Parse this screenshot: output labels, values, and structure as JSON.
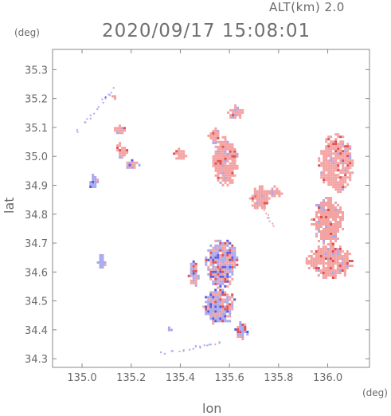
{
  "header": {
    "altitude_label": "ALT(km) 2.0",
    "datetime": "2020/09/17 15:08:01"
  },
  "axes": {
    "x_label": "lon",
    "y_label": "lat",
    "x_unit": "(deg)",
    "y_unit": "(deg)",
    "x_range": [
      134.88,
      136.17
    ],
    "y_range": [
      34.27,
      35.37
    ],
    "x_ticks": [
      "135.0",
      "135.2",
      "135.4",
      "135.6",
      "135.8",
      "136.0"
    ],
    "x_tick_values": [
      135.0,
      135.2,
      135.4,
      135.6,
      135.8,
      136.0
    ],
    "y_ticks": [
      "34.3",
      "34.4",
      "34.5",
      "34.6",
      "34.7",
      "34.8",
      "34.9",
      "35.0",
      "35.1",
      "35.2",
      "35.3"
    ],
    "y_tick_values": [
      34.3,
      34.4,
      34.5,
      34.6,
      34.7,
      34.8,
      34.9,
      35.0,
      35.1,
      35.2,
      35.3
    ]
  },
  "colors": {
    "frame": "#888888",
    "receding": "#f4a3a3",
    "approaching": "#a9a9ee",
    "strong_receding": "#e05050",
    "strong_approaching": "#5a5ae0"
  },
  "echo_regions": [
    {
      "lon": [
        135.96,
        136.1
      ],
      "lat": [
        34.88,
        35.08
      ],
      "tone": "r"
    },
    {
      "lon": [
        135.93,
        136.06
      ],
      "lat": [
        34.7,
        34.86
      ],
      "tone": "r"
    },
    {
      "lon": [
        135.91,
        136.1
      ],
      "lat": [
        34.58,
        34.7
      ],
      "tone": "r"
    },
    {
      "lon": [
        135.5,
        135.63
      ],
      "lat": [
        34.55,
        34.72
      ],
      "tone": "m"
    },
    {
      "lon": [
        135.49,
        135.62
      ],
      "lat": [
        34.42,
        34.55
      ],
      "tone": "m"
    },
    {
      "lon": [
        135.53,
        135.63
      ],
      "lat": [
        34.9,
        35.07
      ],
      "tone": "r"
    },
    {
      "lon": [
        135.51,
        135.56
      ],
      "lat": [
        35.05,
        35.1
      ],
      "tone": "r"
    },
    {
      "lon": [
        135.59,
        135.65
      ],
      "lat": [
        35.13,
        35.18
      ],
      "tone": "r"
    },
    {
      "lon": [
        135.68,
        135.76
      ],
      "lat": [
        34.82,
        34.9
      ],
      "tone": "r"
    },
    {
      "lon": [
        135.75,
        135.81
      ],
      "lat": [
        34.86,
        34.9
      ],
      "tone": "r"
    },
    {
      "lon": [
        135.43,
        135.47
      ],
      "lat": [
        34.55,
        34.64
      ],
      "tone": "m"
    },
    {
      "lon": [
        135.37,
        135.42
      ],
      "lat": [
        34.99,
        35.03
      ],
      "tone": "r"
    },
    {
      "lon": [
        135.12,
        135.18
      ],
      "lat": [
        35.08,
        35.11
      ],
      "tone": "r"
    },
    {
      "lon": [
        135.13,
        135.18
      ],
      "lat": [
        35.0,
        35.05
      ],
      "tone": "r"
    },
    {
      "lon": [
        135.17,
        135.23
      ],
      "lat": [
        34.96,
        34.99
      ],
      "tone": "m"
    },
    {
      "lon": [
        135.02,
        135.06
      ],
      "lat": [
        34.89,
        34.94
      ],
      "tone": "b"
    },
    {
      "lon": [
        135.06,
        135.09
      ],
      "lat": [
        34.61,
        34.67
      ],
      "tone": "b"
    },
    {
      "lon": [
        135.12,
        135.14
      ],
      "lat": [
        35.2,
        35.22
      ],
      "tone": "r"
    },
    {
      "lon": [
        135.34,
        135.37
      ],
      "lat": [
        34.4,
        34.42
      ],
      "tone": "b"
    },
    {
      "lon": [
        135.62,
        135.67
      ],
      "lat": [
        34.37,
        34.43
      ],
      "tone": "m"
    }
  ],
  "echo_streaks": [
    {
      "from": [
        134.97,
        35.08
      ],
      "to": [
        135.13,
        35.24
      ],
      "tone": "b"
    },
    {
      "from": [
        135.32,
        34.32
      ],
      "to": [
        135.56,
        34.36
      ],
      "tone": "b"
    },
    {
      "from": [
        135.7,
        34.87
      ],
      "to": [
        135.78,
        34.76
      ],
      "tone": "r"
    }
  ]
}
